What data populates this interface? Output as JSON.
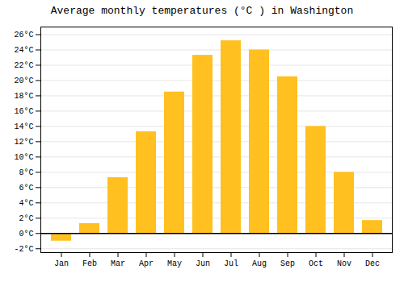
{
  "chart_data": {
    "type": "bar",
    "title": "Average monthly temperatures (°C ) in Washington",
    "categories": [
      "Jan",
      "Feb",
      "Mar",
      "Apr",
      "May",
      "Jun",
      "Jul",
      "Aug",
      "Sep",
      "Oct",
      "Nov",
      "Dec"
    ],
    "values": [
      -1.0,
      1.3,
      7.3,
      13.3,
      18.5,
      23.3,
      25.2,
      24.0,
      20.5,
      14.0,
      8.0,
      1.7
    ],
    "color": "#FFC020",
    "ylim": [
      -2.5,
      27
    ],
    "yticks": [
      {
        "value": -2,
        "label": "-2°C"
      },
      {
        "value": 0,
        "label": "0°C"
      },
      {
        "value": 2,
        "label": "2°C"
      },
      {
        "value": 4,
        "label": "4°C"
      },
      {
        "value": 6,
        "label": "6°C"
      },
      {
        "value": 8,
        "label": "8°C"
      },
      {
        "value": 10,
        "label": "10°C"
      },
      {
        "value": 12,
        "label": "12°C"
      },
      {
        "value": 14,
        "label": "14°C"
      },
      {
        "value": 16,
        "label": "16°C"
      },
      {
        "value": 18,
        "label": "18°C"
      },
      {
        "value": 20,
        "label": "20°C"
      },
      {
        "value": 22,
        "label": "22°C"
      },
      {
        "value": 24,
        "label": "24°C"
      },
      {
        "value": 26,
        "label": "26°C"
      }
    ],
    "grid": true
  }
}
